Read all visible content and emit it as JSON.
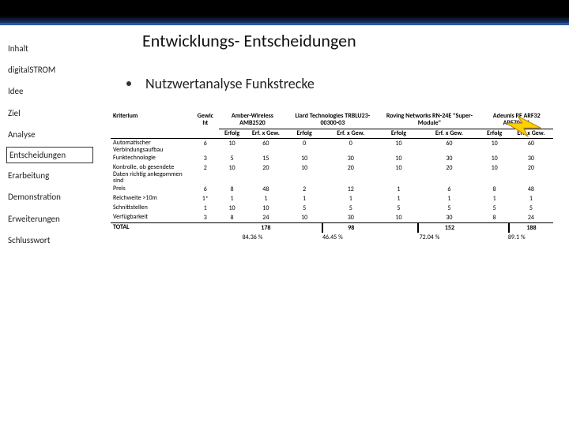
{
  "topbar": {
    "color1": "#000000",
    "color2": "#1a3a6e"
  },
  "sidebar": {
    "items": [
      {
        "label": "Inhalt",
        "boxed": false
      },
      {
        "label": "digitalSTROM",
        "boxed": false
      },
      {
        "label": "Idee",
        "boxed": false
      },
      {
        "label": "Ziel",
        "boxed": false
      },
      {
        "label": "Analyse",
        "boxed": false
      },
      {
        "label": "Entscheidungen",
        "boxed": true
      },
      {
        "label": "Erarbeitung",
        "boxed": false
      },
      {
        "label": "Demonstration",
        "boxed": false
      },
      {
        "label": "Erweiterungen",
        "boxed": false
      },
      {
        "label": "Schlusswort",
        "boxed": false
      }
    ]
  },
  "title": "Entwicklungs- Entscheidungen",
  "bullet": "Nutzwertanalyse Funkstrecke",
  "table": {
    "head": {
      "criterion": "Kriterium",
      "weight": "Gewic ht",
      "modules": [
        "Amber-Wireless AMB2520",
        "Liard Technologies TRBLU23-00300-03",
        "Roving Networks RN-24E \"Super-Module\"",
        "Adeunis RF ARF32 ARF7044A"
      ],
      "sub1": "Erfolg",
      "sub2": "Erf. x Gew."
    },
    "rows": [
      {
        "crit": "Automatischer Verbindungsaufbau",
        "w": "6",
        "v": [
          "10",
          "60",
          "0",
          "0",
          "10",
          "60",
          "10",
          "60"
        ]
      },
      {
        "crit": "Funktechnologie",
        "w": "3",
        "v": [
          "5",
          "15",
          "10",
          "30",
          "10",
          "30",
          "10",
          "30"
        ]
      },
      {
        "crit": "Kontrolle, ob gesendete Daten richtig ankegommen sind",
        "w": "2",
        "v": [
          "10",
          "20",
          "10",
          "20",
          "10",
          "20",
          "10",
          "20"
        ]
      },
      {
        "crit": "Preis",
        "w": "6",
        "v": [
          "8",
          "48",
          "2",
          "12",
          "1",
          "6",
          "8",
          "48"
        ]
      },
      {
        "crit": "Reichweite >10m",
        "w": "1*",
        "v": [
          "1",
          "1",
          "1",
          "1",
          "1",
          "1",
          "1",
          "1"
        ]
      },
      {
        "crit": "Schnittstellen",
        "w": "1",
        "v": [
          "10",
          "10",
          "5",
          "5",
          "5",
          "5",
          "5",
          "5"
        ]
      },
      {
        "crit": "Verfügbarkeit",
        "w": "3",
        "v": [
          "8",
          "24",
          "10",
          "30",
          "10",
          "30",
          "8",
          "24"
        ]
      }
    ],
    "total": {
      "label": "TOTAL",
      "sums": [
        "178",
        "98",
        "152",
        "188"
      ],
      "pcts": [
        "84.36 %",
        "46.45 %",
        "72.04 %",
        "89.1 %"
      ]
    }
  },
  "lightning": {
    "fill": "#ffd000",
    "stroke": "#b8860b"
  }
}
